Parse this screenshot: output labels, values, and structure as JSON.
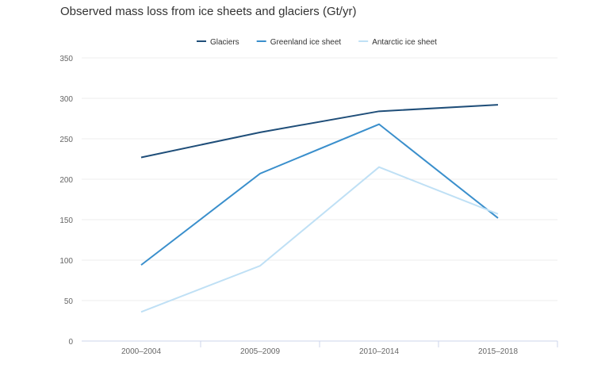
{
  "chart_data": {
    "type": "line",
    "title": "Observed mass loss from ice sheets and glaciers (Gt/yr)",
    "categories": [
      "2000–2004",
      "2005–2009",
      "2010–2014",
      "2015–2018"
    ],
    "ylim": [
      0,
      350
    ],
    "yticks": [
      0,
      50,
      100,
      150,
      200,
      250,
      300,
      350
    ],
    "grid": true,
    "legend": "top",
    "series": [
      {
        "name": "Glaciers",
        "color": "#1f4e79",
        "values": [
          227,
          258,
          284,
          292
        ]
      },
      {
        "name": "Greenland ice sheet",
        "color": "#3a8fcc",
        "values": [
          94,
          207,
          268,
          152
        ]
      },
      {
        "name": "Antarctic ice sheet",
        "color": "#bfe0f5",
        "values": [
          36,
          93,
          215,
          157
        ]
      }
    ]
  }
}
